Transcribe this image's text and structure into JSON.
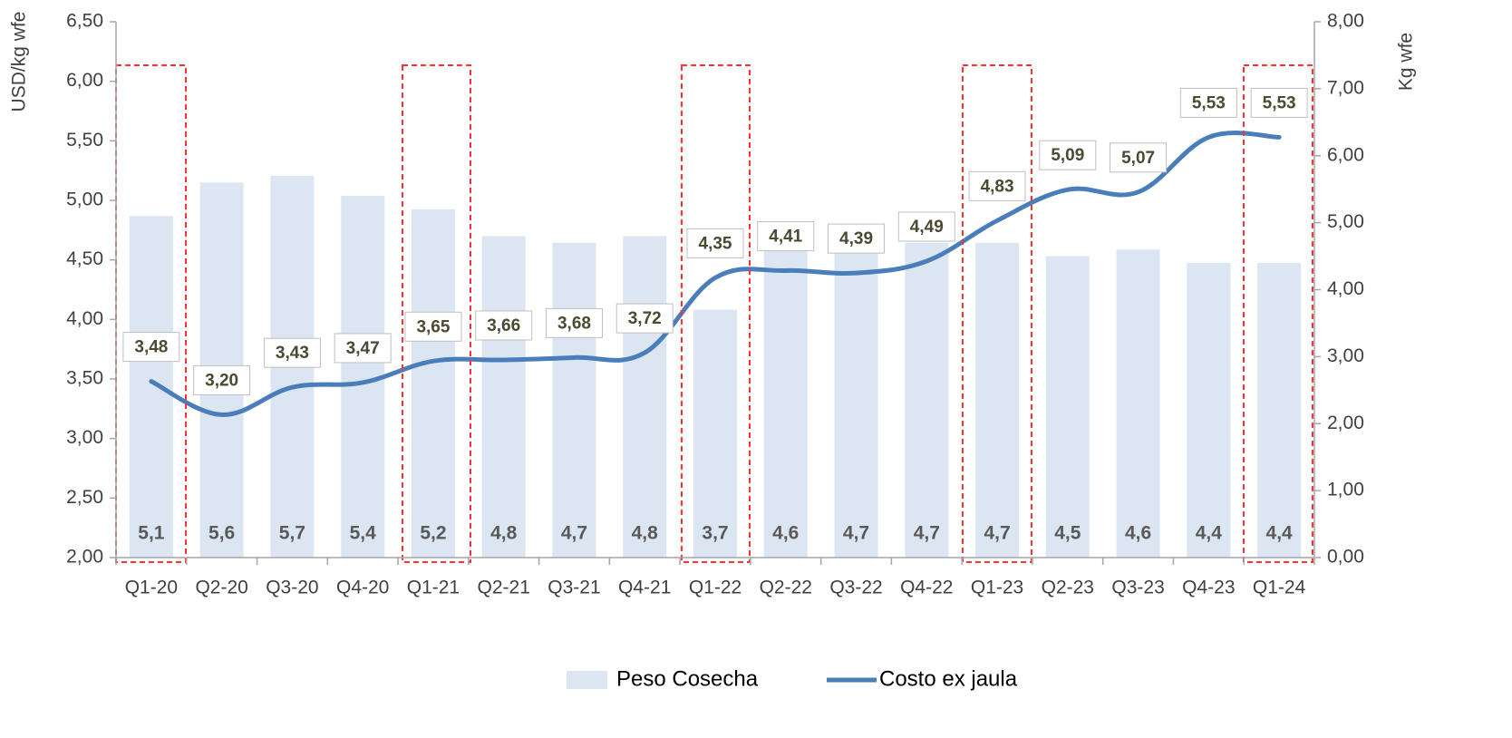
{
  "chart_data": {
    "type": "bar-line",
    "categories": [
      "Q1-20",
      "Q2-20",
      "Q3-20",
      "Q4-20",
      "Q1-21",
      "Q2-21",
      "Q3-21",
      "Q4-21",
      "Q1-22",
      "Q2-22",
      "Q3-22",
      "Q4-22",
      "Q1-23",
      "Q2-23",
      "Q3-23",
      "Q4-23",
      "Q1-24"
    ],
    "ylabel": "USD/kg wfe",
    "y2label": "Kg wfe",
    "ylim": [
      2,
      6.5
    ],
    "yticks": [
      {
        "value": 2,
        "label": "2,00"
      },
      {
        "value": 2.5,
        "label": "2,50"
      },
      {
        "value": 3,
        "label": "3,00"
      },
      {
        "value": 3.5,
        "label": "3,50"
      },
      {
        "value": 4,
        "label": "4,00"
      },
      {
        "value": 4.5,
        "label": "4,50"
      },
      {
        "value": 5,
        "label": "5,00"
      },
      {
        "value": 5.5,
        "label": "5,50"
      },
      {
        "value": 6,
        "label": "6,00"
      },
      {
        "value": 6.5,
        "label": "6,50"
      }
    ],
    "y2lim": [
      0,
      8
    ],
    "y2ticks": [
      {
        "value": 0,
        "label": "0,00"
      },
      {
        "value": 1,
        "label": "1,00"
      },
      {
        "value": 2,
        "label": "2,00"
      },
      {
        "value": 3,
        "label": "3,00"
      },
      {
        "value": 4,
        "label": "4,00"
      },
      {
        "value": 5,
        "label": "5,00"
      },
      {
        "value": 6,
        "label": "6,00"
      },
      {
        "value": 7,
        "label": "7,00"
      },
      {
        "value": 8,
        "label": "8,00"
      }
    ],
    "grid": false,
    "legend": "bottom",
    "series": [
      {
        "name": "Peso Cosecha",
        "kind": "bar",
        "axis": "y2",
        "color": "#dce6f2",
        "values": [
          5.1,
          5.6,
          5.7,
          5.4,
          5.2,
          4.8,
          4.7,
          4.8,
          3.7,
          4.6,
          4.7,
          4.7,
          4.7,
          4.5,
          4.6,
          4.4,
          4.4
        ],
        "value_labels": [
          "5,1",
          "5,6",
          "5,7",
          "5,4",
          "5,2",
          "4,8",
          "4,7",
          "4,8",
          "3,7",
          "4,6",
          "4,7",
          "4,7",
          "4,7",
          "4,5",
          "4,6",
          "4,4",
          "4,4"
        ]
      },
      {
        "name": "Costo ex jaula",
        "kind": "line",
        "axis": "y",
        "color": "#4a7ebb",
        "values": [
          3.48,
          3.2,
          3.43,
          3.47,
          3.65,
          3.66,
          3.68,
          3.72,
          4.35,
          4.41,
          4.39,
          4.49,
          4.83,
          5.09,
          5.07,
          5.53,
          5.53
        ],
        "value_labels": [
          "3,48",
          "3,20",
          "3,43",
          "3,47",
          "3,65",
          "3,66",
          "3,68",
          "3,72",
          "4,35",
          "4,41",
          "4,39",
          "4,49",
          "4,83",
          "5,09",
          "5,07",
          "5,53",
          "5,53"
        ]
      }
    ]
  }
}
